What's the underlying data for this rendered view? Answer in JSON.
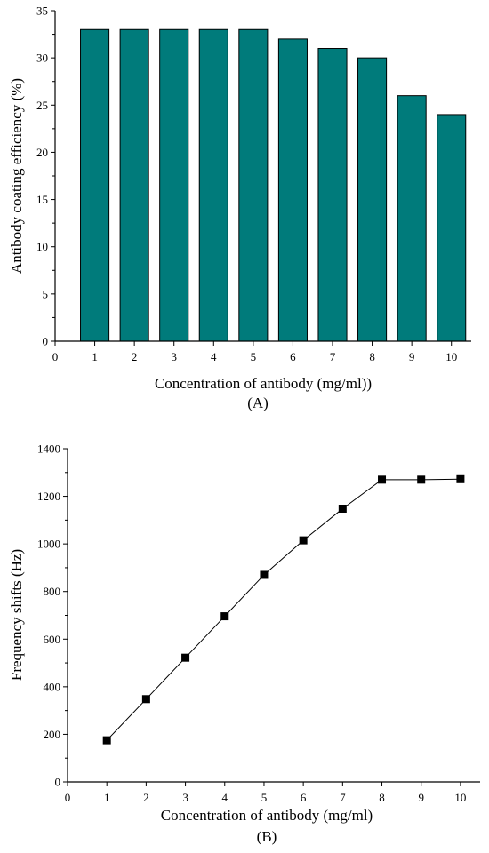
{
  "chart_data": [
    {
      "panel": "(A)",
      "type": "bar",
      "categories": [
        "1",
        "2",
        "3",
        "4",
        "5",
        "6",
        "7",
        "8",
        "9",
        "10"
      ],
      "values": [
        33,
        33,
        33,
        33,
        33,
        32,
        31,
        30,
        26,
        24
      ],
      "xlabel": "Concentration of antibody (mg/ml))",
      "ylabel": "Antibody coating efficiency (%)",
      "xlim": [
        0,
        10.5
      ],
      "ylim": [
        0,
        35
      ],
      "xticks": [
        "0",
        "1",
        "2",
        "3",
        "4",
        "5",
        "6",
        "7",
        "8",
        "9",
        "10"
      ],
      "yticks": [
        "0",
        "5",
        "10",
        "15",
        "20",
        "25",
        "30",
        "35"
      ],
      "bar_color": "#007b7b",
      "grid": false
    },
    {
      "panel": "(B)",
      "type": "line",
      "x": [
        1,
        2,
        3,
        4,
        5,
        6,
        7,
        8,
        9,
        10
      ],
      "y": [
        175,
        348,
        522,
        696,
        870,
        1015,
        1148,
        1270,
        1270,
        1272
      ],
      "xlabel": "Concentration of antibody (mg/ml)",
      "ylabel": "Frequency shifts (Hz)",
      "xlim": [
        0,
        10.5
      ],
      "ylim": [
        0,
        1400
      ],
      "xticks": [
        "0",
        "1",
        "2",
        "3",
        "4",
        "5",
        "6",
        "7",
        "8",
        "9",
        "10"
      ],
      "yticks": [
        "0",
        "200",
        "400",
        "600",
        "800",
        "1000",
        "1200",
        "1400"
      ],
      "marker": "square",
      "line_color": "#000000",
      "grid": false
    }
  ]
}
